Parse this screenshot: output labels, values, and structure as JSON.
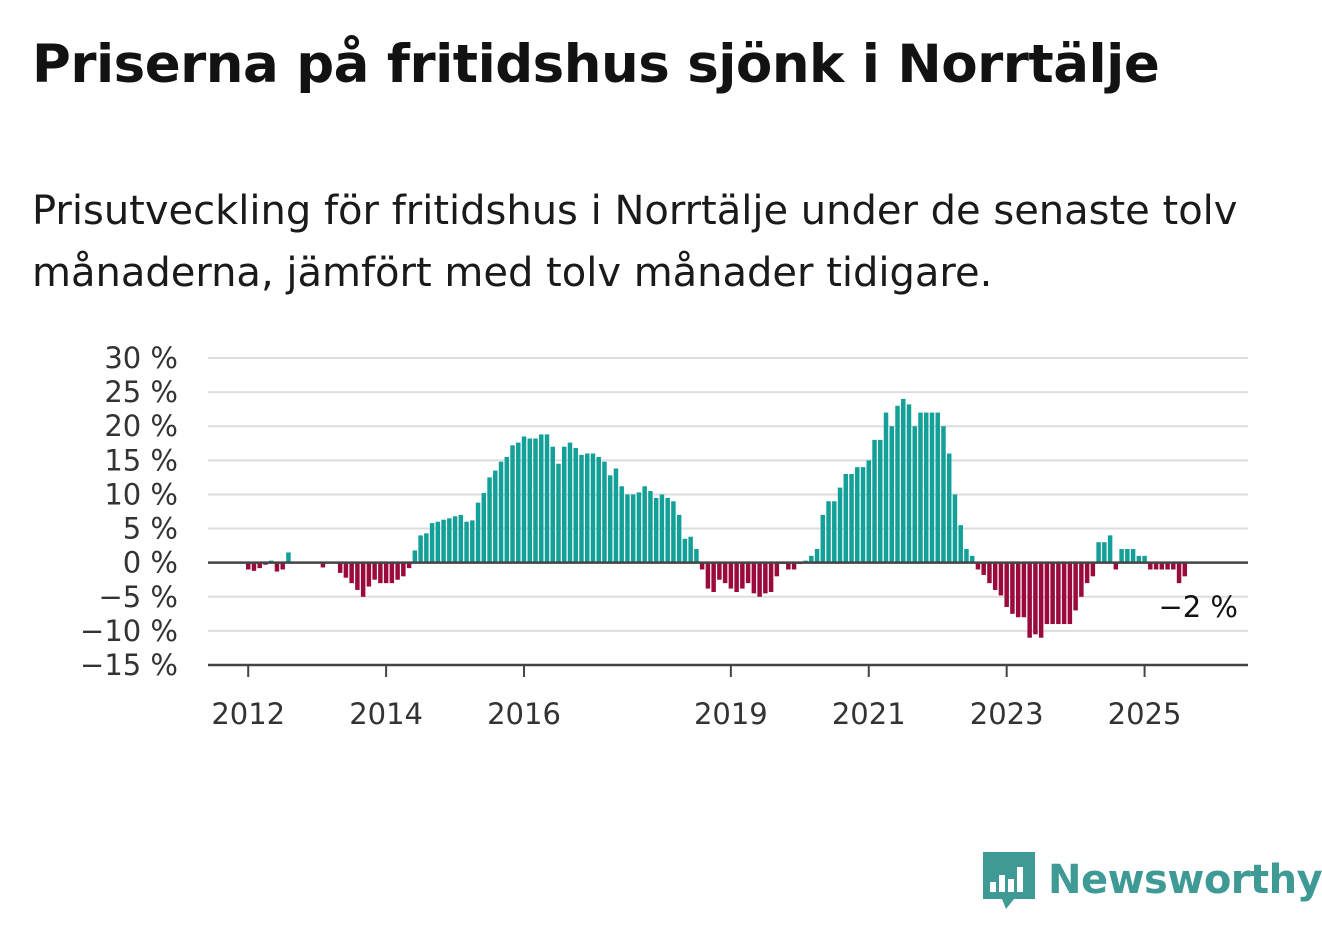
{
  "title": "Priserna på fritidshus sjönk i Norrtälje",
  "subtitle": "Prisutveckling för fritidshus i Norrtälje under de senaste tolv månaderna, jämfört med tolv månader tidigare.",
  "brand": {
    "name": "Newsworthy",
    "color": "#3f9a96",
    "icon": "bar-chart-speech-bubble-icon"
  },
  "colors": {
    "positive": "#12a098",
    "negative": "#9a0a3c",
    "grid": "#dddddd",
    "zero_line": "#444444"
  },
  "chart_data": {
    "type": "bar",
    "title": "",
    "xlabel": "",
    "ylabel": "",
    "ylim": [
      -15,
      30
    ],
    "y_ticks": [
      30,
      25,
      20,
      15,
      10,
      5,
      0,
      -5,
      -10,
      -15
    ],
    "y_tick_labels": [
      "30 %",
      "25 %",
      "20 %",
      "15 %",
      "10 %",
      "5 %",
      "0 %",
      "−5 %",
      "−10 %",
      "−15 %"
    ],
    "x_tick_labels": [
      "2012",
      "2014",
      "2016",
      "2019",
      "2021",
      "2023",
      "2025"
    ],
    "x_tick_dates": [
      "2012-01",
      "2014-01",
      "2016-01",
      "2019-01",
      "2021-01",
      "2023-01",
      "2025-01"
    ],
    "x_start": "2011-06",
    "x_end": "2026-07",
    "grid": true,
    "legend": "none",
    "annotation": {
      "label": "−2 %",
      "date": "2025-08",
      "value": -2
    },
    "series": [
      {
        "unit": "%",
        "dates": [
          "2012-01",
          "2012-02",
          "2012-03",
          "2012-04",
          "2012-05",
          "2012-06",
          "2012-07",
          "2012-08",
          "2012-09",
          "2012-10",
          "2012-11",
          "2012-12",
          "2013-01",
          "2013-02",
          "2013-03",
          "2013-04",
          "2013-05",
          "2013-06",
          "2013-07",
          "2013-08",
          "2013-09",
          "2013-10",
          "2013-11",
          "2013-12",
          "2014-01",
          "2014-02",
          "2014-03",
          "2014-04",
          "2014-05",
          "2014-06",
          "2014-07",
          "2014-08",
          "2014-09",
          "2014-10",
          "2014-11",
          "2014-12",
          "2015-01",
          "2015-02",
          "2015-03",
          "2015-04",
          "2015-05",
          "2015-06",
          "2015-07",
          "2015-08",
          "2015-09",
          "2015-10",
          "2015-11",
          "2015-12",
          "2016-01",
          "2016-02",
          "2016-03",
          "2016-04",
          "2016-05",
          "2016-06",
          "2016-07",
          "2016-08",
          "2016-09",
          "2016-10",
          "2016-11",
          "2016-12",
          "2017-01",
          "2017-02",
          "2017-03",
          "2017-04",
          "2017-05",
          "2017-06",
          "2017-07",
          "2017-08",
          "2017-09",
          "2017-10",
          "2017-11",
          "2017-12",
          "2018-01",
          "2018-02",
          "2018-03",
          "2018-04",
          "2018-05",
          "2018-06",
          "2018-07",
          "2018-08",
          "2018-09",
          "2018-10",
          "2018-11",
          "2018-12",
          "2019-01",
          "2019-02",
          "2019-03",
          "2019-04",
          "2019-05",
          "2019-06",
          "2019-07",
          "2019-08",
          "2019-09",
          "2019-10",
          "2019-11",
          "2019-12",
          "2020-01",
          "2020-02",
          "2020-03",
          "2020-04",
          "2020-05",
          "2020-06",
          "2020-07",
          "2020-08",
          "2020-09",
          "2020-10",
          "2020-11",
          "2020-12",
          "2021-01",
          "2021-02",
          "2021-03",
          "2021-04",
          "2021-05",
          "2021-06",
          "2021-07",
          "2021-08",
          "2021-09",
          "2021-10",
          "2021-11",
          "2021-12",
          "2022-01",
          "2022-02",
          "2022-03",
          "2022-04",
          "2022-05",
          "2022-06",
          "2022-07",
          "2022-08",
          "2022-09",
          "2022-10",
          "2022-11",
          "2022-12",
          "2023-01",
          "2023-02",
          "2023-03",
          "2023-04",
          "2023-05",
          "2023-06",
          "2023-07",
          "2023-08",
          "2023-09",
          "2023-10",
          "2023-11",
          "2023-12",
          "2024-01",
          "2024-02",
          "2024-03",
          "2024-04",
          "2024-05",
          "2024-06",
          "2024-07",
          "2024-08",
          "2024-09",
          "2024-10",
          "2024-11",
          "2024-12",
          "2025-01",
          "2025-02",
          "2025-03",
          "2025-04",
          "2025-05",
          "2025-06",
          "2025-07",
          "2025-08"
        ],
        "values": [
          -1,
          -1.2,
          -0.8,
          -0.3,
          0.3,
          -1.3,
          -1.0,
          1.5,
          0,
          0,
          0,
          0,
          0,
          -0.7,
          0,
          0,
          -1.5,
          -2.2,
          -3,
          -4,
          -5,
          -3.5,
          -2.5,
          -3,
          -3,
          -3,
          -2.5,
          -2,
          -0.8,
          1.8,
          4,
          4.3,
          5.8,
          6,
          6.3,
          6.5,
          6.8,
          7,
          6,
          6.2,
          8.8,
          10.2,
          12.5,
          13.5,
          14.8,
          15.5,
          17.2,
          17.6,
          18.5,
          18.2,
          18.2,
          18.8,
          18.8,
          17,
          14.5,
          17,
          17.6,
          16.8,
          15.8,
          16,
          16,
          15.5,
          14.8,
          12.8,
          13.8,
          11.2,
          10,
          10,
          10.3,
          11.2,
          10.5,
          9.5,
          10,
          9.5,
          9,
          7,
          3.5,
          3.8,
          2,
          -1,
          -3.8,
          -4.3,
          -2.5,
          -3,
          -3.8,
          -4.3,
          -3.8,
          -3,
          -4.5,
          -5,
          -4.5,
          -4.3,
          -2,
          -0.2,
          -1,
          -1,
          -0.2,
          0.3,
          1,
          2,
          7,
          9,
          9,
          11,
          13,
          13,
          14,
          14,
          15,
          18,
          18,
          22,
          20,
          23,
          24,
          23.2,
          20,
          22,
          22,
          22,
          22,
          20,
          16,
          10,
          5.5,
          2,
          1,
          -1,
          -1.8,
          -3,
          -4,
          -4.8,
          -6.5,
          -7.5,
          -8,
          -8,
          -11,
          -10.5,
          -11,
          -9,
          -9,
          -9,
          -9,
          -9,
          -7,
          -5,
          -3,
          -2,
          3,
          3,
          4,
          -1,
          2,
          2,
          2,
          1,
          1,
          -1,
          -1,
          -1,
          -1,
          -1,
          -3,
          -2
        ]
      }
    ]
  }
}
